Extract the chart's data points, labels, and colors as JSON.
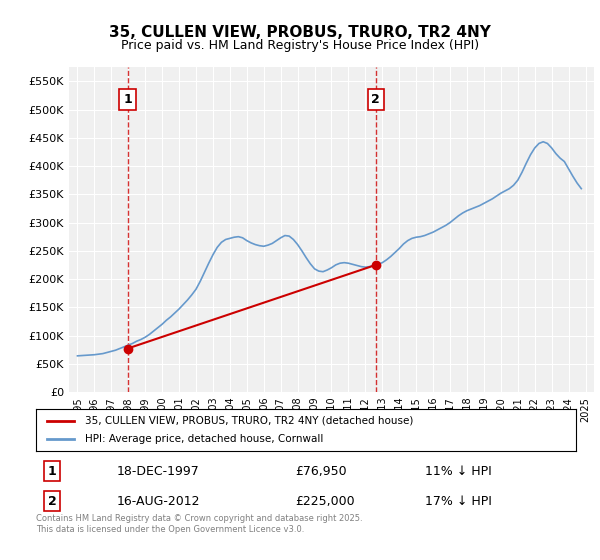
{
  "title": "35, CULLEN VIEW, PROBUS, TRURO, TR2 4NY",
  "subtitle": "Price paid vs. HM Land Registry's House Price Index (HPI)",
  "background_color": "#ffffff",
  "plot_bg_color": "#f0f0f0",
  "grid_color": "#ffffff",
  "hpi_color": "#6699cc",
  "price_color": "#cc0000",
  "dashed_line_color": "#cc0000",
  "ylim": [
    0,
    575000
  ],
  "yticks": [
    0,
    50000,
    100000,
    150000,
    200000,
    250000,
    300000,
    350000,
    400000,
    450000,
    500000,
    550000
  ],
  "ytick_labels": [
    "£0",
    "£50K",
    "£100K",
    "£150K",
    "£200K",
    "£250K",
    "£300K",
    "£350K",
    "£400K",
    "£450K",
    "£500K",
    "£550K"
  ],
  "sale1_date": "18-DEC-1997",
  "sale1_price": 76950,
  "sale1_hpi_pct": "11% ↓ HPI",
  "sale1_label": "1",
  "sale2_date": "16-AUG-2012",
  "sale2_price": 225000,
  "sale2_hpi_pct": "17% ↓ HPI",
  "sale2_label": "2",
  "legend_label1": "35, CULLEN VIEW, PROBUS, TRURO, TR2 4NY (detached house)",
  "legend_label2": "HPI: Average price, detached house, Cornwall",
  "footnote": "Contains HM Land Registry data © Crown copyright and database right 2025.\nThis data is licensed under the Open Government Licence v3.0.",
  "hpi_data": {
    "dates": [
      1995.0,
      1995.25,
      1995.5,
      1995.75,
      1996.0,
      1996.25,
      1996.5,
      1996.75,
      1997.0,
      1997.25,
      1997.5,
      1997.75,
      1998.0,
      1998.25,
      1998.5,
      1998.75,
      1999.0,
      1999.25,
      1999.5,
      1999.75,
      2000.0,
      2000.25,
      2000.5,
      2000.75,
      2001.0,
      2001.25,
      2001.5,
      2001.75,
      2002.0,
      2002.25,
      2002.5,
      2002.75,
      2003.0,
      2003.25,
      2003.5,
      2003.75,
      2004.0,
      2004.25,
      2004.5,
      2004.75,
      2005.0,
      2005.25,
      2005.5,
      2005.75,
      2006.0,
      2006.25,
      2006.5,
      2006.75,
      2007.0,
      2007.25,
      2007.5,
      2007.75,
      2008.0,
      2008.25,
      2008.5,
      2008.75,
      2009.0,
      2009.25,
      2009.5,
      2009.75,
      2010.0,
      2010.25,
      2010.5,
      2010.75,
      2011.0,
      2011.25,
      2011.5,
      2011.75,
      2012.0,
      2012.25,
      2012.5,
      2012.75,
      2013.0,
      2013.25,
      2013.5,
      2013.75,
      2014.0,
      2014.25,
      2014.5,
      2014.75,
      2015.0,
      2015.25,
      2015.5,
      2015.75,
      2016.0,
      2016.25,
      2016.5,
      2016.75,
      2017.0,
      2017.25,
      2017.5,
      2017.75,
      2018.0,
      2018.25,
      2018.5,
      2018.75,
      2019.0,
      2019.25,
      2019.5,
      2019.75,
      2020.0,
      2020.25,
      2020.5,
      2020.75,
      2021.0,
      2021.25,
      2021.5,
      2021.75,
      2022.0,
      2022.25,
      2022.5,
      2022.75,
      2023.0,
      2023.25,
      2023.5,
      2023.75,
      2024.0,
      2024.25,
      2024.5,
      2024.75
    ],
    "values": [
      64000,
      64500,
      65000,
      65500,
      66000,
      67000,
      68000,
      70000,
      72000,
      74000,
      77000,
      80000,
      83000,
      86000,
      90000,
      93000,
      97000,
      102000,
      108000,
      114000,
      120000,
      127000,
      133000,
      140000,
      147000,
      155000,
      163000,
      172000,
      182000,
      196000,
      212000,
      228000,
      243000,
      256000,
      265000,
      270000,
      272000,
      274000,
      275000,
      273000,
      268000,
      264000,
      261000,
      259000,
      258000,
      260000,
      263000,
      268000,
      273000,
      277000,
      276000,
      270000,
      261000,
      250000,
      238000,
      227000,
      218000,
      214000,
      213000,
      216000,
      220000,
      225000,
      228000,
      229000,
      228000,
      226000,
      224000,
      222000,
      221000,
      222000,
      224000,
      226000,
      229000,
      234000,
      240000,
      247000,
      254000,
      262000,
      268000,
      272000,
      274000,
      275000,
      277000,
      280000,
      283000,
      287000,
      291000,
      295000,
      300000,
      306000,
      312000,
      317000,
      321000,
      324000,
      327000,
      330000,
      334000,
      338000,
      342000,
      347000,
      352000,
      356000,
      360000,
      366000,
      375000,
      389000,
      405000,
      420000,
      432000,
      440000,
      443000,
      440000,
      432000,
      422000,
      414000,
      408000,
      395000,
      382000,
      370000,
      360000
    ]
  },
  "price_data": {
    "dates": [
      1997.96,
      2012.62
    ],
    "values": [
      76950,
      225000
    ]
  },
  "sale1_x": 1997.96,
  "sale2_x": 2012.62,
  "xmin": 1994.5,
  "xmax": 2025.5
}
